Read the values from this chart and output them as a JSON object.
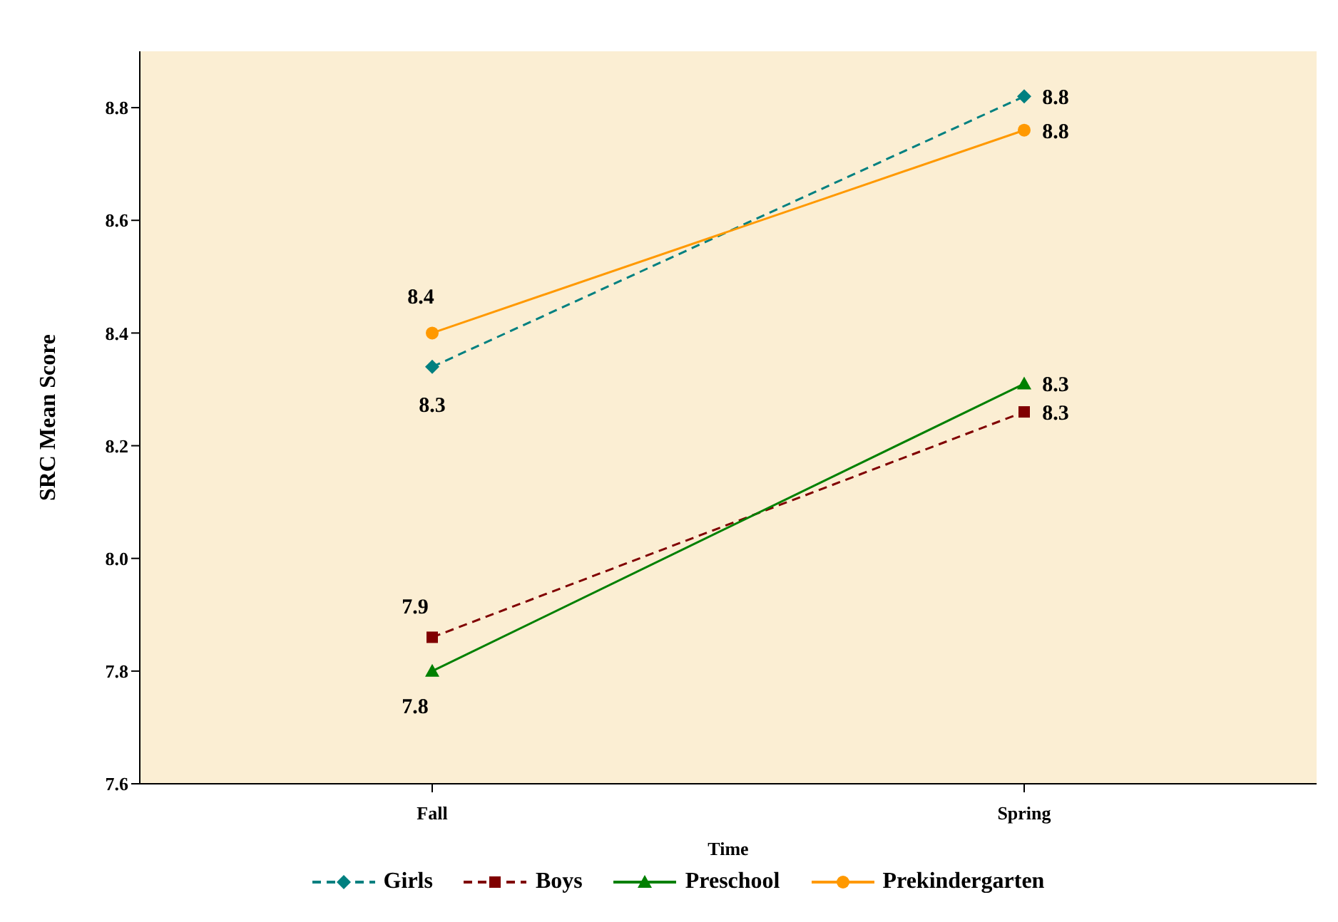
{
  "chart_data": {
    "type": "line",
    "xlabel": "Time",
    "ylabel": "SRC Mean Score",
    "categories": [
      "Fall",
      "Spring"
    ],
    "series": [
      {
        "name": "Girls",
        "color": "#008080",
        "values": [
          8.34,
          8.82
        ],
        "value_labels": [
          "8.3",
          "8.8"
        ],
        "marker": "diamond",
        "line_style": "dashed"
      },
      {
        "name": "Boys",
        "color": "#800000",
        "values": [
          7.86,
          8.26
        ],
        "value_labels": [
          "7.9",
          "8.3"
        ],
        "marker": "square",
        "line_style": "dashed"
      },
      {
        "name": "Preschool",
        "color": "#008000",
        "values": [
          7.8,
          8.31
        ],
        "value_labels": [
          "7.8",
          "8.3"
        ],
        "marker": "triangle",
        "line_style": "solid"
      },
      {
        "name": "Prekindergarten",
        "color": "#ff9900",
        "values": [
          8.4,
          8.76
        ],
        "value_labels": [
          "8.4",
          "8.8"
        ],
        "marker": "circle",
        "line_style": "solid"
      }
    ],
    "ylim": [
      7.6,
      8.9
    ],
    "yticks": [
      7.6,
      7.8,
      {
        "value": 8,
        "label": "8.0"
      },
      8.2,
      8.4,
      8.6,
      8.8
    ],
    "grid": false,
    "legend": "bottom"
  }
}
